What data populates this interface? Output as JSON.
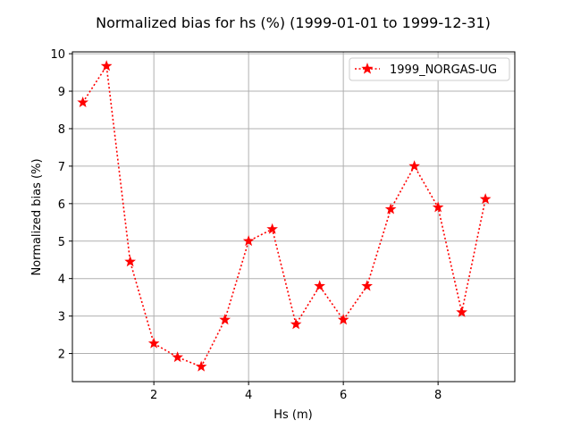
{
  "chart_data": {
    "type": "line",
    "title": "Normalized bias for hs (%) (1999-01-01 to 1999-12-31)",
    "xlabel": "Hs (m)",
    "ylabel": "Normalized bias (%)",
    "xlim": [
      0.28,
      9.62
    ],
    "ylim": [
      1.25,
      10.05
    ],
    "xticks": [
      2,
      4,
      6,
      8
    ],
    "yticks": [
      2,
      3,
      4,
      5,
      6,
      7,
      8,
      9,
      10
    ],
    "grid": true,
    "legend_position": "top-right",
    "series": [
      {
        "name": "1999_NORGAS-UG",
        "color": "#ff0000",
        "line_style": "dotted",
        "marker": "star",
        "x": [
          0.5,
          1.0,
          1.5,
          2.0,
          2.5,
          3.0,
          3.5,
          4.0,
          4.5,
          5.0,
          5.5,
          6.0,
          6.5,
          7.0,
          7.5,
          8.0,
          8.5,
          9.0
        ],
        "y": [
          8.7,
          9.67,
          4.45,
          2.27,
          1.9,
          1.65,
          2.9,
          5.0,
          5.32,
          2.78,
          3.8,
          2.9,
          3.8,
          5.85,
          7.0,
          5.9,
          3.1,
          6.12
        ]
      }
    ]
  }
}
